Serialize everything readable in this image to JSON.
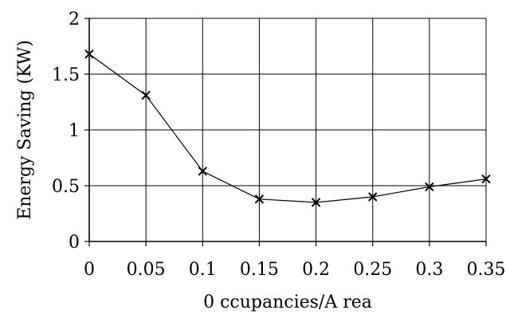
{
  "chart_data": {
    "type": "line",
    "xlabel": "0 ccupancies/A rea",
    "ylabel": "Energy Saving (KW)",
    "x": [
      0,
      0.05,
      0.1,
      0.15,
      0.2,
      0.25,
      0.3,
      0.35
    ],
    "xticks": [
      "0",
      "0.05",
      "0.1",
      "0.15",
      "0.2",
      "0.25",
      "0.3",
      "0.35"
    ],
    "yticks": [
      "0",
      "0.5",
      "1",
      "1.5",
      "2"
    ],
    "series": [
      {
        "values": [
          1.68,
          1.31,
          0.63,
          0.38,
          0.35,
          0.4,
          0.49,
          0.56
        ]
      }
    ],
    "xlim": [
      0,
      0.35
    ],
    "ylim": [
      0,
      2
    ],
    "grid": true,
    "marker": "x",
    "line_color": "#000000"
  }
}
